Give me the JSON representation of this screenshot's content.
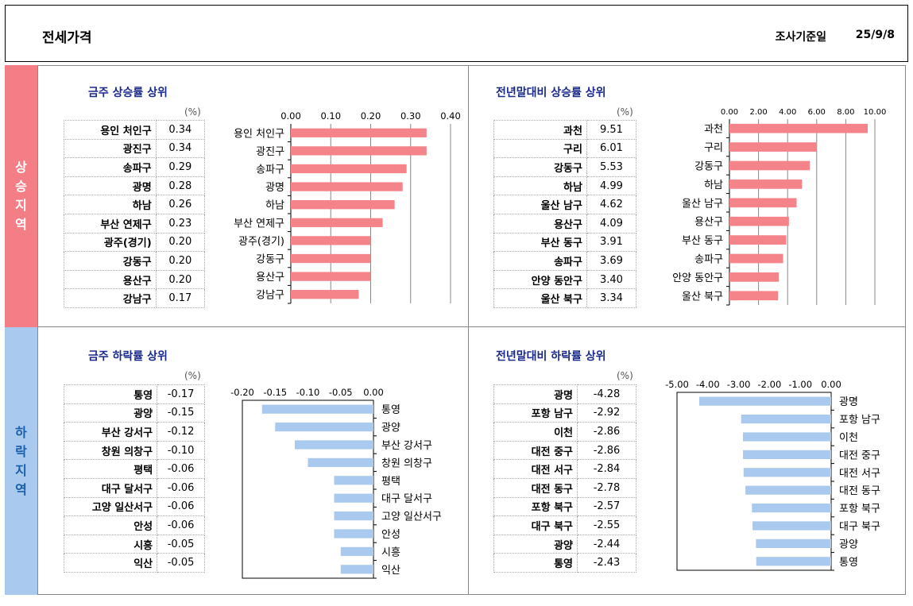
{
  "header": {
    "title": "전세가격",
    "date_label": "조사기준일",
    "date_value": "25/9/8"
  },
  "bands": {
    "up": [
      "상",
      "승",
      "지",
      "역"
    ],
    "down": [
      "하",
      "락",
      "지",
      "역"
    ]
  },
  "colors": {
    "up_band": "#f47e85",
    "up_bar": "#f4848a",
    "down_band": "#a9caee",
    "down_bar": "#a9caee",
    "title": "#1a2a8c"
  },
  "panels": {
    "weekly_up": {
      "title": "금주 상승률 상위",
      "unit": "(%)",
      "rows": [
        {
          "name": "용인 처인구",
          "value": "0.34"
        },
        {
          "name": "광진구",
          "value": "0.34"
        },
        {
          "name": "송파구",
          "value": "0.29"
        },
        {
          "name": "광명",
          "value": "0.28"
        },
        {
          "name": "하남",
          "value": "0.26"
        },
        {
          "name": "부산 연제구",
          "value": "0.23"
        },
        {
          "name": "광주(경기)",
          "value": "0.20"
        },
        {
          "name": "강동구",
          "value": "0.20"
        },
        {
          "name": "용산구",
          "value": "0.20"
        },
        {
          "name": "강남구",
          "value": "0.17"
        }
      ]
    },
    "yearly_up": {
      "title": "전년말대비 상승률 상위",
      "unit": "(%)",
      "rows": [
        {
          "name": "과천",
          "value": "9.51"
        },
        {
          "name": "구리",
          "value": "6.01"
        },
        {
          "name": "강동구",
          "value": "5.53"
        },
        {
          "name": "하남",
          "value": "4.99"
        },
        {
          "name": "울산 남구",
          "value": "4.62"
        },
        {
          "name": "용산구",
          "value": "4.09"
        },
        {
          "name": "부산 동구",
          "value": "3.91"
        },
        {
          "name": "송파구",
          "value": "3.69"
        },
        {
          "name": "안양 동안구",
          "value": "3.40"
        },
        {
          "name": "울산 북구",
          "value": "3.34"
        }
      ]
    },
    "weekly_down": {
      "title": "금주 하락률 상위",
      "unit": "(%)",
      "rows": [
        {
          "name": "통영",
          "value": "-0.17"
        },
        {
          "name": "광양",
          "value": "-0.15"
        },
        {
          "name": "부산 강서구",
          "value": "-0.12"
        },
        {
          "name": "창원 의창구",
          "value": "-0.10"
        },
        {
          "name": "평택",
          "value": "-0.06"
        },
        {
          "name": "대구 달서구",
          "value": "-0.06"
        },
        {
          "name": "고양 일산서구",
          "value": "-0.06"
        },
        {
          "name": "안성",
          "value": "-0.06"
        },
        {
          "name": "시흥",
          "value": "-0.05"
        },
        {
          "name": "익산",
          "value": "-0.05"
        }
      ]
    },
    "yearly_down": {
      "title": "전년말대비 하락률 상위",
      "unit": "(%)",
      "rows": [
        {
          "name": "광명",
          "value": "-4.28"
        },
        {
          "name": "포항 남구",
          "value": "-2.92"
        },
        {
          "name": "이천",
          "value": "-2.86"
        },
        {
          "name": "대전 중구",
          "value": "-2.86"
        },
        {
          "name": "대전 서구",
          "value": "-2.84"
        },
        {
          "name": "대전 동구",
          "value": "-2.78"
        },
        {
          "name": "포항 북구",
          "value": "-2.57"
        },
        {
          "name": "대구 북구",
          "value": "-2.55"
        },
        {
          "name": "광양",
          "value": "-2.44"
        },
        {
          "name": "통영",
          "value": "-2.43"
        }
      ]
    }
  },
  "chart_data": [
    {
      "id": "weekly_up",
      "type": "bar",
      "orientation": "horizontal",
      "categories": [
        "용인 처인구",
        "광진구",
        "송파구",
        "광명",
        "하남",
        "부산 연제구",
        "광주(경기)",
        "강동구",
        "용산구",
        "강남구"
      ],
      "values": [
        0.34,
        0.34,
        0.29,
        0.28,
        0.26,
        0.23,
        0.2,
        0.2,
        0.2,
        0.17
      ],
      "xlim": [
        0,
        0.4
      ],
      "ticks": [
        "0.00",
        "0.10",
        "0.20",
        "0.30",
        "0.40"
      ],
      "tick_values": [
        0,
        0.1,
        0.2,
        0.3,
        0.4
      ],
      "grid": true,
      "frame": false,
      "axis_position": "top",
      "label_side": "left"
    },
    {
      "id": "yearly_up",
      "type": "bar",
      "orientation": "horizontal",
      "categories": [
        "과천",
        "구리",
        "강동구",
        "하남",
        "울산 남구",
        "용산구",
        "부산 동구",
        "송파구",
        "안양 동안구",
        "울산 북구"
      ],
      "values": [
        9.51,
        6.01,
        5.53,
        4.99,
        4.62,
        4.09,
        3.91,
        3.69,
        3.4,
        3.34
      ],
      "xlim": [
        0,
        10
      ],
      "ticks": [
        "0.00",
        "2.00",
        "4.00",
        "6.00",
        "8.00",
        "10.00"
      ],
      "tick_values": [
        0,
        2,
        4,
        6,
        8,
        10
      ],
      "grid": true,
      "frame": false,
      "axis_position": "top",
      "label_side": "left"
    },
    {
      "id": "weekly_down",
      "type": "bar",
      "orientation": "horizontal",
      "categories": [
        "통영",
        "광양",
        "부산 강서구",
        "창원 의창구",
        "평택",
        "대구 달서구",
        "고양 일산서구",
        "안성",
        "시흥",
        "익산"
      ],
      "values": [
        -0.17,
        -0.15,
        -0.12,
        -0.1,
        -0.06,
        -0.06,
        -0.06,
        -0.06,
        -0.05,
        -0.05
      ],
      "xlim": [
        -0.2,
        0
      ],
      "ticks": [
        "-0.20",
        "-0.15",
        "-0.10",
        "-0.05",
        "0.00"
      ],
      "tick_values": [
        -0.2,
        -0.15,
        -0.1,
        -0.05,
        0
      ],
      "grid": false,
      "frame": true,
      "axis_position": "top",
      "label_side": "right"
    },
    {
      "id": "yearly_down",
      "type": "bar",
      "orientation": "horizontal",
      "categories": [
        "광명",
        "포항 남구",
        "이천",
        "대전 중구",
        "대전 서구",
        "대전 동구",
        "포항 북구",
        "대구 북구",
        "광양",
        "통영"
      ],
      "values": [
        -4.28,
        -2.92,
        -2.86,
        -2.86,
        -2.84,
        -2.78,
        -2.57,
        -2.55,
        -2.44,
        -2.43
      ],
      "xlim": [
        -5,
        0
      ],
      "ticks": [
        "-5.00",
        "-4.00",
        "-3.00",
        "-2.00",
        "-1.00",
        "0.00"
      ],
      "tick_values": [
        -5,
        -4,
        -3,
        -2,
        -1,
        0
      ],
      "grid": false,
      "frame": true,
      "axis_position": "top",
      "label_side": "right"
    }
  ]
}
